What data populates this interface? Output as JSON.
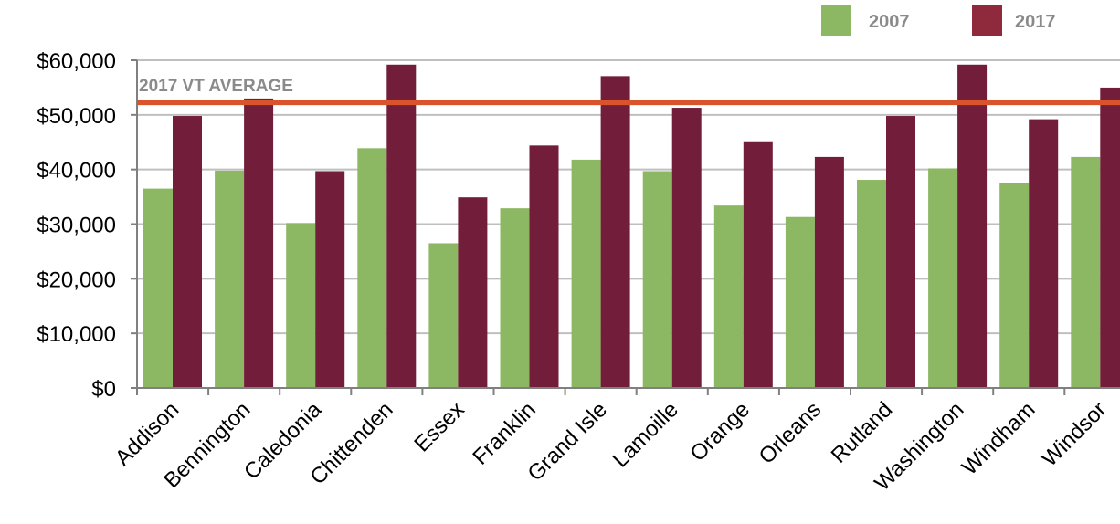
{
  "chart_data": {
    "type": "bar",
    "categories": [
      "Addison",
      "Bennington",
      "Caledonia",
      "Chittenden",
      "Essex",
      "Franklin",
      "Grand Isle",
      "Lamoille",
      "Orange",
      "Orleans",
      "Rutland",
      "Washington",
      "Windham",
      "Windsor"
    ],
    "series": [
      {
        "name": "2007",
        "color": "#8db863",
        "values": [
          36500,
          39800,
          30200,
          43900,
          26500,
          32900,
          41800,
          39700,
          33400,
          31300,
          38100,
          40200,
          37600,
          42300
        ]
      },
      {
        "name": "2017",
        "color": "#721d3a",
        "values": [
          49800,
          53000,
          39700,
          59200,
          34900,
          44400,
          57100,
          51300,
          45000,
          42300,
          49800,
          59200,
          49200,
          55000
        ]
      }
    ],
    "ylim": [
      0,
      60000
    ],
    "yticks": [
      "$0",
      "$10,000",
      "$20,000",
      "$30,000",
      "$40,000",
      "$50,000",
      "$60,000"
    ],
    "ytick_values": [
      0,
      10000,
      20000,
      30000,
      40000,
      50000,
      60000
    ],
    "grid": true,
    "legend": {
      "placement": "top-right",
      "swatch_colors": [
        "#8db863",
        "#8f2a3c"
      ]
    },
    "reference_line": {
      "label": "2017 VT AVERAGE",
      "value": 52300,
      "color": "#d9532b"
    },
    "xlabel": "",
    "ylabel": "",
    "title": ""
  }
}
